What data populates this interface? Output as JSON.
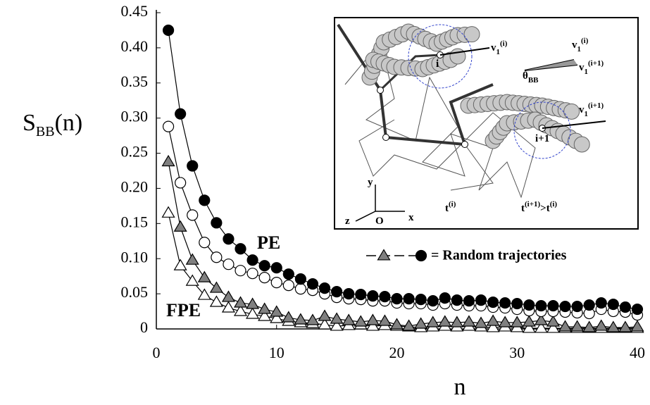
{
  "chart_data": {
    "type": "scatter",
    "y_label": {
      "main": "S",
      "sub": "BB",
      "suffix": "(n)"
    },
    "x_label": "n",
    "x": [
      1,
      2,
      3,
      4,
      5,
      6,
      7,
      8,
      9,
      10,
      11,
      12,
      13,
      14,
      15,
      16,
      17,
      18,
      19,
      20,
      21,
      22,
      23,
      24,
      25,
      26,
      27,
      28,
      29,
      30,
      31,
      32,
      33,
      34,
      35,
      36,
      37,
      38,
      39,
      40
    ],
    "series": [
      {
        "marker": "circle",
        "color": "#000000",
        "values": [
          0.425,
          0.306,
          0.232,
          0.183,
          0.151,
          0.128,
          0.114,
          0.098,
          0.09,
          0.087,
          0.078,
          0.071,
          0.064,
          0.058,
          0.053,
          0.05,
          0.049,
          0.047,
          0.046,
          0.043,
          0.043,
          0.042,
          0.04,
          0.044,
          0.041,
          0.04,
          0.041,
          0.038,
          0.037,
          0.036,
          0.034,
          0.033,
          0.033,
          0.032,
          0.032,
          0.034,
          0.037,
          0.035,
          0.031,
          0.028
        ]
      },
      {
        "marker": "circle",
        "color": "#ffffff",
        "values": [
          0.288,
          0.208,
          0.162,
          0.123,
          0.102,
          0.092,
          0.083,
          0.079,
          0.073,
          0.066,
          0.062,
          0.057,
          0.055,
          0.05,
          0.045,
          0.043,
          0.042,
          0.04,
          0.04,
          0.037,
          0.036,
          0.036,
          0.034,
          0.036,
          0.034,
          0.033,
          0.033,
          0.031,
          0.03,
          0.028,
          0.026,
          0.025,
          0.025,
          0.024,
          0.023,
          0.022,
          0.028,
          0.025,
          0.024,
          0.02
        ]
      },
      {
        "marker": "triangle",
        "color": "#808080",
        "values": [
          0.238,
          0.145,
          0.098,
          0.073,
          0.058,
          0.045,
          0.037,
          0.035,
          0.028,
          0.024,
          0.016,
          0.013,
          0.012,
          0.018,
          0.014,
          0.012,
          0.01,
          0.012,
          0.011,
          0.006,
          0.004,
          0.007,
          0.009,
          0.01,
          0.009,
          0.01,
          0.008,
          0.011,
          0.009,
          0.009,
          0.01,
          0.012,
          0.01,
          0.003,
          0.003,
          0.002,
          0.004,
          0.002,
          0.002,
          0.003
        ]
      },
      {
        "marker": "triangle",
        "color": "#ffffff",
        "values": [
          0.165,
          0.09,
          0.068,
          0.048,
          0.038,
          0.03,
          0.025,
          0.021,
          0.018,
          0.015,
          0.011,
          0.009,
          0.008,
          0.006,
          0.004,
          0.005,
          0.006,
          0.004,
          0.005,
          0.004,
          0.003,
          0.002,
          0.003,
          0.004,
          0.003,
          0.004,
          0.003,
          0.002,
          0.003,
          0.002,
          0.001,
          0.001,
          0.001,
          0.001,
          0.001,
          0.001,
          0.001,
          0.001,
          0.001,
          0.001
        ]
      }
    ],
    "xlim": [
      0,
      40
    ],
    "xticks": [
      0,
      10,
      20,
      30,
      40
    ],
    "ylim": [
      0,
      0.45
    ],
    "yticks": [
      0,
      0.05,
      {
        "value": 0.1,
        "label": "0.10"
      },
      0.15,
      {
        "value": 0.2,
        "label": "0.20"
      },
      0.25,
      {
        "value": 0.3,
        "label": "0.30"
      },
      0.35,
      {
        "value": 0.4,
        "label": "0.40"
      },
      0.45
    ],
    "annotations": [
      "PE",
      "FPE"
    ],
    "legend_label": "= Random trajectories"
  },
  "inset": {
    "labels": [
      {
        "parts": [
          {
            "text": "v"
          },
          {
            "sub": "1"
          },
          {
            "sup": "(i)"
          }
        ]
      },
      {
        "parts": [
          {
            "text": "v"
          },
          {
            "sub": "1"
          },
          {
            "sup": "(i)"
          }
        ]
      },
      {
        "parts": [
          {
            "text": "v"
          },
          {
            "sub": "1"
          },
          {
            "sup": "(i+1)"
          }
        ]
      },
      {
        "parts": [
          {
            "text": "θ"
          },
          {
            "sub": "BB"
          }
        ]
      },
      {
        "parts": [
          {
            "text": "v"
          },
          {
            "sub": "1"
          },
          {
            "sup": "(i+1)"
          }
        ]
      },
      {
        "parts": [
          {
            "text": "i"
          }
        ]
      },
      {
        "parts": [
          {
            "text": "i+1"
          }
        ]
      },
      {
        "parts": [
          {
            "text": "t"
          },
          {
            "sup": "(i)"
          }
        ]
      },
      {
        "parts": [
          {
            "text": "t"
          },
          {
            "sup": "(i+1)"
          },
          {
            "text": ">t"
          },
          {
            "sup": "(i)"
          }
        ]
      },
      {
        "parts": [
          {
            "text": "y"
          }
        ]
      },
      {
        "parts": [
          {
            "text": "z"
          }
        ]
      },
      {
        "parts": [
          {
            "text": "O"
          }
        ]
      },
      {
        "parts": [
          {
            "text": "x"
          }
        ]
      }
    ]
  }
}
